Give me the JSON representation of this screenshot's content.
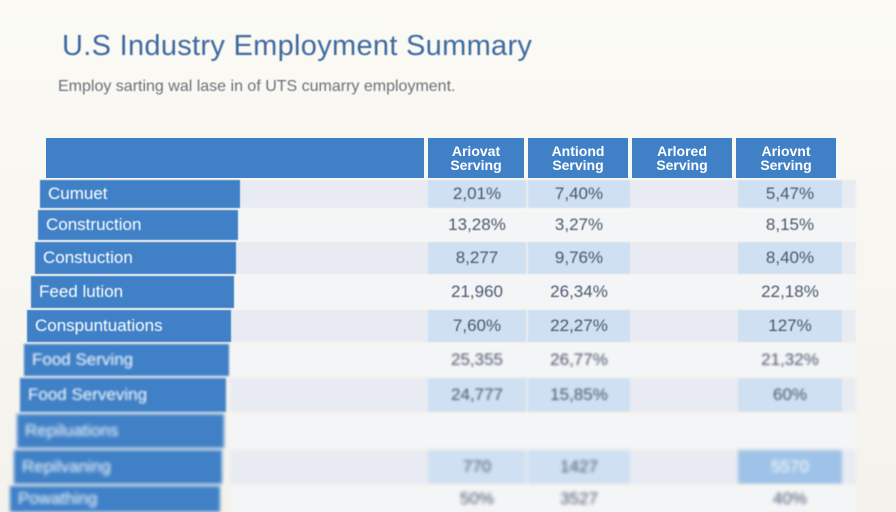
{
  "header": {
    "title": "U.S Industry Employment Summary",
    "subtitle": "Employ sarting wal lase in of UTS cumarry employment."
  },
  "table": {
    "columns": [
      "Ariovat Serving",
      "Antiond Serving",
      "Arlored Serving",
      "Ariovnt Serving"
    ],
    "rows": [
      {
        "label": "Cumuet",
        "values": [
          "2,01%",
          "7,40%",
          "",
          "5,47%"
        ]
      },
      {
        "label": "Construction",
        "values": [
          "13,28%",
          "3,27%",
          "",
          "8,15%"
        ]
      },
      {
        "label": "Constuction",
        "values": [
          "8,277",
          "9,76%",
          "",
          "8,40%"
        ]
      },
      {
        "label": "Feed lution",
        "values": [
          "21,960",
          "26,34%",
          "",
          "22,18%"
        ]
      },
      {
        "label": "Conspuntuations",
        "values": [
          "7,60%",
          "22,27%",
          "",
          "127%"
        ]
      },
      {
        "label": "Food Serving",
        "values": [
          "25,355",
          "26,77%",
          "",
          "21,32%"
        ]
      },
      {
        "label": "Food Serveving",
        "values": [
          "24,777",
          "15,85%",
          "",
          "60%"
        ]
      },
      {
        "label": "Repiluations",
        "values": [
          "",
          "",
          "",
          ""
        ]
      },
      {
        "label": "Repilvaning",
        "values": [
          "770",
          "1427",
          "",
          "5570"
        ]
      },
      {
        "label": "Powathing",
        "values": [
          "50%",
          "3527",
          "",
          "40%"
        ]
      }
    ]
  }
}
